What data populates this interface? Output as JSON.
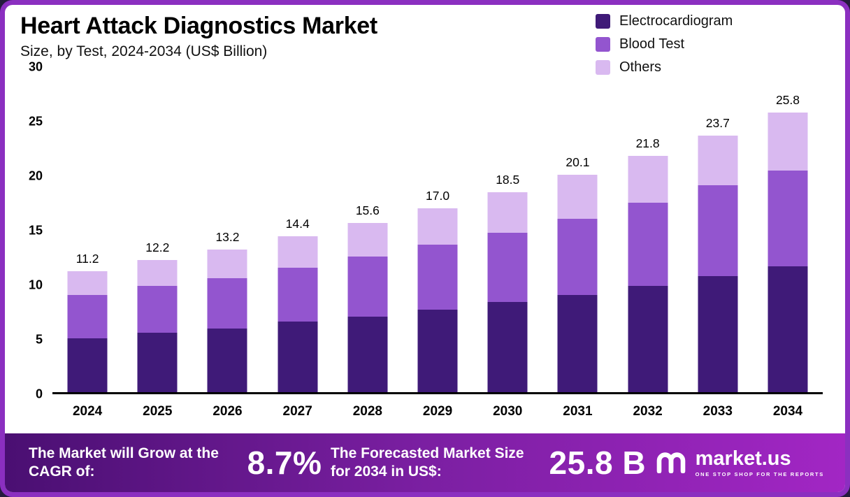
{
  "header": {
    "title": "Heart Attack Diagnostics Market",
    "subtitle": "Size, by Test, 2024-2034 (US$ Billion)"
  },
  "legend": [
    {
      "label": "Electrocardiogram",
      "color": "#3f1a78"
    },
    {
      "label": "Blood Test",
      "color": "#9355cf"
    },
    {
      "label": "Others",
      "color": "#d9b9f0"
    }
  ],
  "chart_data": {
    "type": "bar",
    "stacked": true,
    "title": "Heart Attack Diagnostics Market",
    "subtitle": "Size, by Test, 2024-2034 (US$ Billion)",
    "xlabel": "",
    "ylabel": "US$ Billion",
    "ylim": [
      0,
      30
    ],
    "yticks": [
      0,
      5,
      10,
      15,
      20,
      25,
      30
    ],
    "grid": false,
    "legend_position": "top-right",
    "categories": [
      "2024",
      "2025",
      "2026",
      "2027",
      "2028",
      "2029",
      "2030",
      "2031",
      "2032",
      "2033",
      "2034"
    ],
    "series": [
      {
        "name": "Electrocardiogram",
        "color": "#3f1a78",
        "values": [
          5.0,
          5.5,
          5.9,
          6.5,
          7.0,
          7.6,
          8.3,
          9.0,
          9.8,
          10.7,
          11.6
        ]
      },
      {
        "name": "Blood Test",
        "color": "#9355cf",
        "values": [
          4.0,
          4.3,
          4.6,
          5.0,
          5.5,
          6.0,
          6.4,
          7.0,
          7.7,
          8.4,
          8.9
        ]
      },
      {
        "name": "Others",
        "color": "#d9b9f0",
        "values": [
          2.2,
          2.4,
          2.7,
          2.9,
          3.1,
          3.4,
          3.8,
          4.1,
          4.3,
          4.6,
          5.3
        ]
      }
    ],
    "totals": [
      11.2,
      12.2,
      13.2,
      14.4,
      15.6,
      17.0,
      18.5,
      20.1,
      21.8,
      23.7,
      25.8
    ]
  },
  "footer": {
    "cagr_label": "The Market will Grow at the CAGR of:",
    "cagr_value": "8.7%",
    "forecast_label": "The Forecasted Market Size for 2034 in US$:",
    "forecast_value": "25.8 B",
    "brand": "market.us",
    "brand_tagline": "ONE STOP SHOP FOR THE REPORTS"
  },
  "colors": {
    "frame": "#8b2fc0",
    "banner_gradient": [
      "#4a0f72",
      "#7b1fa2",
      "#a226c4"
    ],
    "axis": "#000000",
    "background": "#ffffff"
  }
}
